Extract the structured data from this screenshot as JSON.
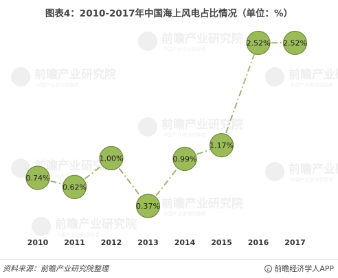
{
  "chart_data": {
    "type": "line",
    "title": "图表4：2010-2017年中国海上风电占比情况（单位：%）",
    "categories": [
      "2010",
      "2011",
      "2012",
      "2013",
      "2014",
      "2015",
      "2016",
      "2017"
    ],
    "series": [
      {
        "values": [
          0.74,
          0.62,
          1.0,
          0.37,
          0.99,
          1.17,
          2.52,
          2.52
        ],
        "labels": [
          "0.74%",
          "0.62%",
          "1.00%",
          "0.37%",
          "0.99%",
          "1.17%",
          "2.52%",
          "2.52%"
        ]
      }
    ],
    "line_style": "dash-dot",
    "line_color": "#9bb56a",
    "marker_color": "#9bbb59",
    "marker_border": "#6f8a3a",
    "grid": false,
    "legend": "none"
  },
  "watermark": {
    "brand": "前瞻产业研究院",
    "sub": "中国产业咨询领导者"
  },
  "footer": {
    "source": "资料来源：前瞻产业研究院整理",
    "brand": "前瞻经济学人APP",
    "copyright_symbol": "c"
  }
}
